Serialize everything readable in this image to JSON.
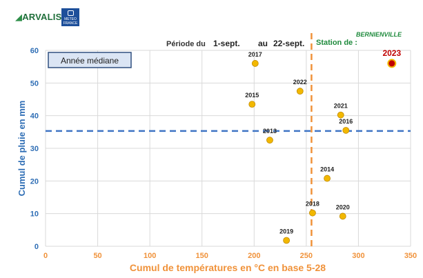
{
  "logos": {
    "arvalis": "ARVALIS",
    "meteo_line1": "METEO",
    "meteo_line2": "FRANCE"
  },
  "header": {
    "periode_label": "Période du",
    "start": "1-sept.",
    "au_label": "au",
    "end": "22-sept.",
    "station_label": "Station de :",
    "station_name": "BERNIENVILLE"
  },
  "colors": {
    "axis_label": "#2f6eb5",
    "x_axis_label": "#f0923a",
    "point_fill": "#f2b800",
    "point_stroke": "#c08a00",
    "highlight_fill": "#c00000",
    "highlight_ring": "#f2b800",
    "median_h": "#3f74c4",
    "median_v": "#f0923a",
    "station_label": "#1e8a3c",
    "station_name": "#1e8a3c",
    "legend_bg": "#dbe5f4",
    "legend_border": "#2f4f7f"
  },
  "chart_data": {
    "type": "scatter",
    "xlabel": "Cumul de températures en °C en base 5-28",
    "ylabel": "Cumul de pluie en mm",
    "xlim": [
      0,
      350
    ],
    "ylim": [
      0,
      60
    ],
    "xticks": [
      0,
      50,
      100,
      150,
      200,
      250,
      300,
      350
    ],
    "yticks": [
      0,
      10,
      20,
      30,
      40,
      50,
      60
    ],
    "grid": true,
    "legend_box": "Année médiane",
    "median": {
      "x": 255,
      "y": 35.3
    },
    "points": [
      {
        "label": "2017",
        "x": 201,
        "y": 56
      },
      {
        "label": "2022",
        "x": 244,
        "y": 47.5
      },
      {
        "label": "2015",
        "x": 198,
        "y": 43.5
      },
      {
        "label": "2021",
        "x": 283,
        "y": 40.2
      },
      {
        "label": "2016",
        "x": 288,
        "y": 35.5
      },
      {
        "label": "2013",
        "x": 215,
        "y": 32.5
      },
      {
        "label": "2014",
        "x": 270,
        "y": 20.8
      },
      {
        "label": "2018",
        "x": 256,
        "y": 10.2
      },
      {
        "label": "2020",
        "x": 285,
        "y": 9.2
      },
      {
        "label": "2019",
        "x": 231,
        "y": 1.8
      }
    ],
    "highlight": {
      "label": "2023",
      "x": 332,
      "y": 56
    }
  }
}
